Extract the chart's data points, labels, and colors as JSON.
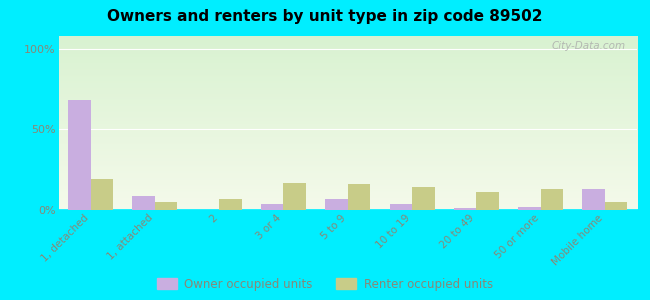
{
  "title": "Owners and renters by unit type in zip code 89502",
  "categories": [
    "1, detached",
    "1, attached",
    "2",
    "3 or 4",
    "5 to 9",
    "10 to 19",
    "20 to 49",
    "50 or more",
    "Mobile home"
  ],
  "owner_values": [
    68,
    9,
    0,
    4,
    7,
    4,
    1,
    2,
    13
  ],
  "renter_values": [
    19,
    5,
    7,
    17,
    16,
    14,
    11,
    13,
    5
  ],
  "owner_color": "#c9aee0",
  "renter_color": "#c8cc88",
  "background_color": "#00eeff",
  "yticks": [
    0,
    50,
    100
  ],
  "ylim": [
    0,
    108
  ],
  "bar_width": 0.35,
  "legend_owner": "Owner occupied units",
  "legend_renter": "Renter occupied units",
  "watermark": "City-Data.com",
  "grid_color": "#ddddcc",
  "tick_color": "#888877",
  "plot_bg": "#f0f5e0"
}
